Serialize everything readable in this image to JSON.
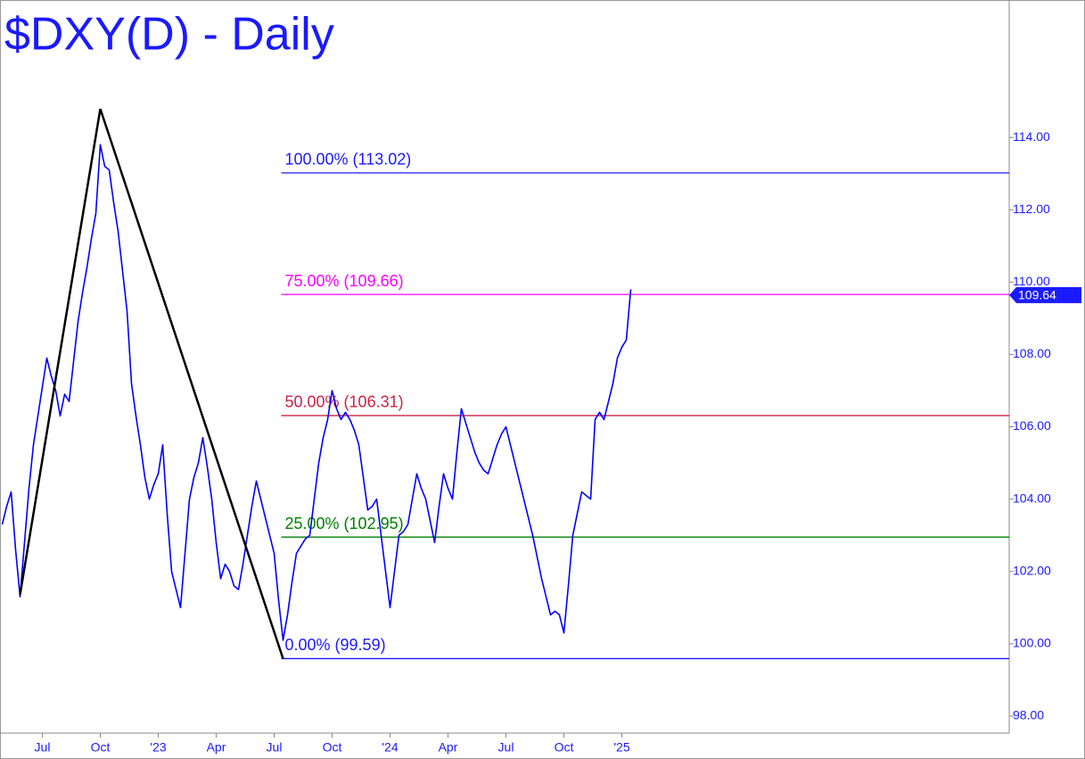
{
  "chart_data": {
    "type": "line",
    "title": "$DXY(D) - Daily",
    "categories": [
      null,
      null,
      null,
      null,
      null,
      null,
      null,
      null,
      null,
      "Jul",
      null,
      null,
      null,
      null,
      null,
      null,
      null,
      null,
      null,
      null,
      null,
      null,
      "Oct",
      null,
      null,
      null,
      null,
      null,
      null,
      null,
      null,
      null,
      null,
      null,
      null,
      "'23",
      null,
      null,
      null,
      null,
      null,
      null,
      null,
      null,
      null,
      null,
      null,
      null,
      "Apr",
      null,
      null,
      null,
      null,
      null,
      null,
      null,
      null,
      null,
      null,
      null,
      null,
      "Jul",
      null,
      null,
      null,
      null,
      null,
      null,
      null,
      null,
      null,
      null,
      null,
      null,
      "Oct",
      null,
      null,
      null,
      null,
      null,
      null,
      null,
      null,
      null,
      null,
      null,
      null,
      "'24",
      null,
      null,
      null,
      null,
      null,
      null,
      null,
      null,
      null,
      null,
      null,
      null,
      "Apr",
      null,
      null,
      null,
      null,
      null,
      null,
      null,
      null,
      null,
      null,
      null,
      null,
      "Jul",
      null,
      null,
      null,
      null,
      null,
      null,
      null,
      null,
      null,
      null,
      null,
      null,
      "Oct",
      null,
      null,
      null,
      null,
      null,
      null,
      null,
      null,
      null,
      null,
      null,
      null,
      "'25",
      null,
      null
    ],
    "values": [
      103.3,
      103.8,
      104.2,
      102.6,
      101.3,
      102.8,
      104.3,
      105.5,
      106.3,
      107.1,
      107.9,
      107.4,
      107.0,
      106.3,
      106.9,
      106.7,
      107.8,
      108.9,
      109.7,
      110.4,
      111.2,
      111.9,
      113.8,
      113.2,
      113.1,
      112.2,
      111.4,
      110.3,
      109.2,
      107.2,
      106.3,
      105.5,
      104.6,
      104.0,
      104.4,
      104.7,
      105.5,
      103.6,
      102.0,
      101.5,
      101.0,
      102.5,
      104.0,
      104.6,
      105.0,
      105.7,
      104.9,
      104.0,
      102.8,
      101.8,
      102.2,
      102.0,
      101.6,
      101.5,
      102.2,
      103.0,
      103.8,
      104.5,
      104.0,
      103.5,
      103.0,
      102.5,
      101.2,
      100.1,
      100.8,
      101.7,
      102.5,
      102.7,
      102.9,
      103.0,
      104.0,
      105.0,
      105.7,
      106.2,
      107.0,
      106.5,
      106.2,
      106.4,
      106.2,
      105.9,
      105.5,
      104.6,
      103.7,
      103.8,
      104.0,
      103.0,
      102.0,
      101.0,
      102.0,
      103.0,
      103.1,
      103.3,
      104.0,
      104.7,
      104.3,
      104.0,
      103.4,
      102.8,
      103.8,
      104.7,
      104.3,
      104.0,
      105.3,
      106.5,
      106.1,
      105.7,
      105.3,
      105.0,
      104.8,
      104.7,
      105.1,
      105.5,
      105.8,
      106.0,
      105.5,
      105.0,
      104.5,
      104.0,
      103.5,
      103.0,
      102.4,
      101.8,
      101.3,
      100.8,
      100.9,
      100.8,
      100.3,
      101.6,
      103.0,
      103.6,
      104.2,
      104.1,
      104.0,
      106.2,
      106.4,
      106.2,
      106.7,
      107.2,
      107.9,
      108.2,
      108.4,
      109.8
    ],
    "color": "#0000ff",
    "ylim": [
      97.53,
      117.8
    ],
    "yticks": [
      {
        "value": 98,
        "label": "98.00"
      },
      {
        "value": 100,
        "label": "100.00"
      },
      {
        "value": 102,
        "label": "102.00"
      },
      {
        "value": 104,
        "label": "104.00"
      },
      {
        "value": 106,
        "label": "106.00"
      },
      {
        "value": 108,
        "label": "108.00"
      },
      {
        "value": 110,
        "label": "110.00"
      },
      {
        "value": 112,
        "label": "112.00"
      },
      {
        "value": 114,
        "label": "114.00"
      }
    ],
    "last_value": 109.64,
    "pattern": {
      "indices": [
        4,
        22,
        63
      ],
      "values": [
        101.36,
        114.79,
        99.59
      ],
      "color": "#000000"
    },
    "fib_levels": [
      {
        "label": "100.00% (113.02)",
        "value": 113.02,
        "color": "#1a1aff"
      },
      {
        "label": "75.00% (109.66)",
        "value": 109.66,
        "color": "#ff00ff"
      },
      {
        "label": "50.00% (106.31)",
        "value": 106.31,
        "color": "#cc2244"
      },
      {
        "label": "25.00% (102.95)",
        "value": 102.95,
        "color": "#008000"
      },
      {
        "label": "0.00% (99.59)",
        "value": 99.59,
        "color": "#1a1aff"
      }
    ]
  }
}
